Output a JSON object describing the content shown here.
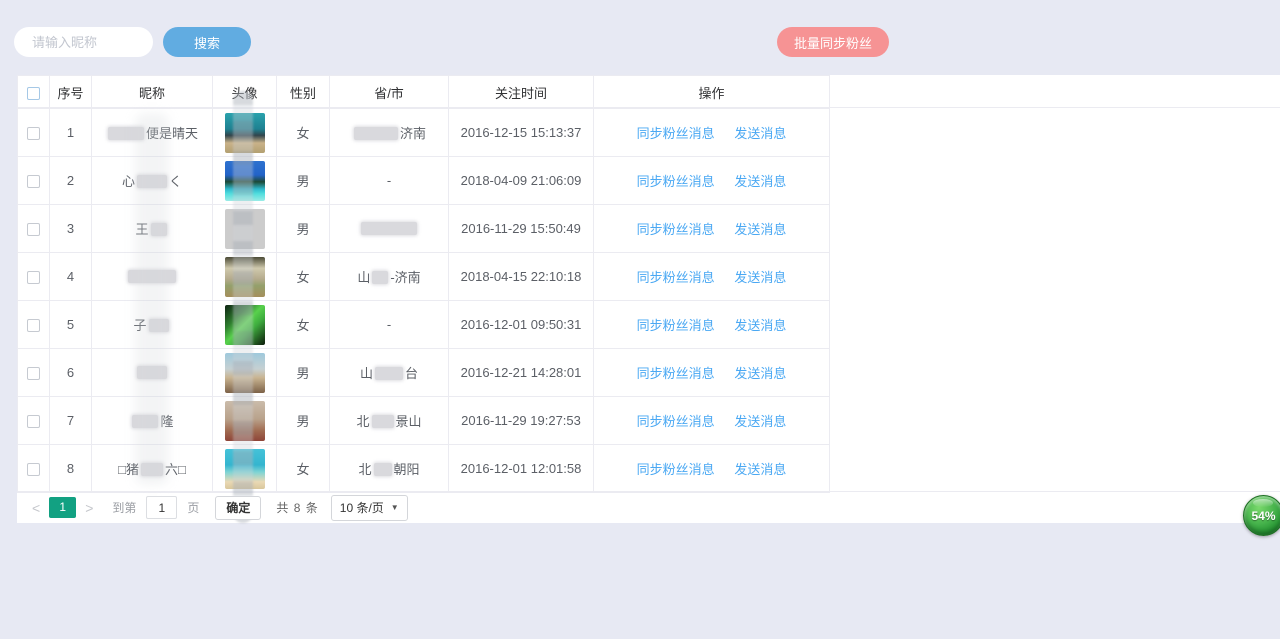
{
  "toolbar": {
    "search_placeholder": "请输入昵称",
    "search_button": "搜索",
    "batch_button": "批量同步粉丝"
  },
  "table": {
    "headers": [
      "序号",
      "昵称",
      "头像",
      "性别",
      "省/市",
      "关注时间",
      "操作"
    ],
    "op_links": [
      "同步粉丝消息",
      "发送消息"
    ],
    "rows": [
      {
        "num": "1",
        "nick": {
          "pre": "",
          "blur": 36,
          "post": "便是晴天"
        },
        "gender": "女",
        "prov": {
          "pre": "",
          "blur": 44,
          "post": "济南"
        },
        "time": "2016-12-15 15:13:37",
        "avatar": "linear-gradient(180deg,#2aa2ad 0%,#1f8191 40%,#32454c 56%,#c9b289 75%,#b3a071 100%)"
      },
      {
        "num": "2",
        "nick": {
          "pre": "心",
          "blur": 30,
          "post": "く"
        },
        "gender": "男",
        "prov": {
          "pre": "-",
          "blur": 0,
          "post": ""
        },
        "time": "2018-04-09 21:06:09",
        "avatar": "linear-gradient(180deg,#2e72cf 0%,#2363c8 35%,#1d4a37 52%,#2fb9cc 70%,#52dede 82%,#9aece6 100%)"
      },
      {
        "num": "3",
        "nick": {
          "pre": "王",
          "blur": 16,
          "post": ""
        },
        "gender": "男",
        "prov": {
          "pre": "",
          "blur": 56,
          "post": ""
        },
        "time": "2016-11-29 15:50:49",
        "avatar": "linear-gradient(180deg,#cede ea 0%,#cedeea 0%,#aecbdf 55%,#95b8d1 100%)"
      },
      {
        "num": "4",
        "nick": {
          "pre": "",
          "blur": 48,
          "post": ""
        },
        "gender": "女",
        "prov": {
          "pre": "山",
          "blur": 16,
          "post": "-济南"
        },
        "time": "2018-04-15 22:10:18",
        "avatar": "linear-gradient(180deg,#4a4a36 0%,#cfc9ad 28%,#b5ab8d 55%,#94a06b 72%,#a58f5c 100%)"
      },
      {
        "num": "5",
        "nick": {
          "pre": "子",
          "blur": 20,
          "post": ""
        },
        "gender": "女",
        "prov": {
          "pre": "-",
          "blur": 0,
          "post": ""
        },
        "time": "2016-12-01 09:50:31",
        "avatar": "linear-gradient(135deg,#0e2212 0%,#2f7f2f 30%,#58d14c 48%,#3fae3f 64%,#0c1a0a 100%)"
      },
      {
        "num": "6",
        "nick": {
          "pre": "",
          "blur": 30,
          "post": ""
        },
        "gender": "男",
        "prov": {
          "pre": "山",
          "blur": 28,
          "post": "台"
        },
        "time": "2016-12-21 14:28:01",
        "avatar": "linear-gradient(180deg,#9fc9dc 0%,#c6d0d2 40%,#c9b491 62%,#7d6248 100%)"
      },
      {
        "num": "7",
        "nick": {
          "pre": "",
          "blur": 26,
          "post": "隆"
        },
        "gender": "男",
        "prov": {
          "pre": "北",
          "blur": 22,
          "post": "景山"
        },
        "time": "2016-11-29 19:27:53",
        "avatar": "linear-gradient(180deg,#cbbcab 0%,#b9a28b 45%,#a06a50 75%,#8e4438 100%)"
      },
      {
        "num": "8",
        "nick": {
          "pre": "□猪",
          "blur": 22,
          "post": "六□"
        },
        "gender": "女",
        "prov": {
          "pre": "北",
          "blur": 18,
          "post": "朝阳"
        },
        "time": "2016-12-01 12:01:58",
        "avatar": "linear-gradient(180deg,#45c2d8 0%,#35b5cf 40%,#7fd4d4 58%,#ead9b5 82%,#d9c79c 100%)"
      }
    ]
  },
  "pagination": {
    "prev": "<",
    "current": "1",
    "next": ">",
    "goto_label": "到第",
    "goto_value": "1",
    "page_unit": "页",
    "confirm": "确定",
    "total": "共 8 条",
    "page_size": "10 条/页",
    "caret": "▼"
  },
  "badge": {
    "value": "54%"
  },
  "colors": {
    "page_bg": "#e7e9f3",
    "search_button": "#61ace1",
    "batch_button": "#f69394",
    "link_blue": "#4aa8f3",
    "active_page_green": "#12a182",
    "badge_green": "#45b24b"
  }
}
